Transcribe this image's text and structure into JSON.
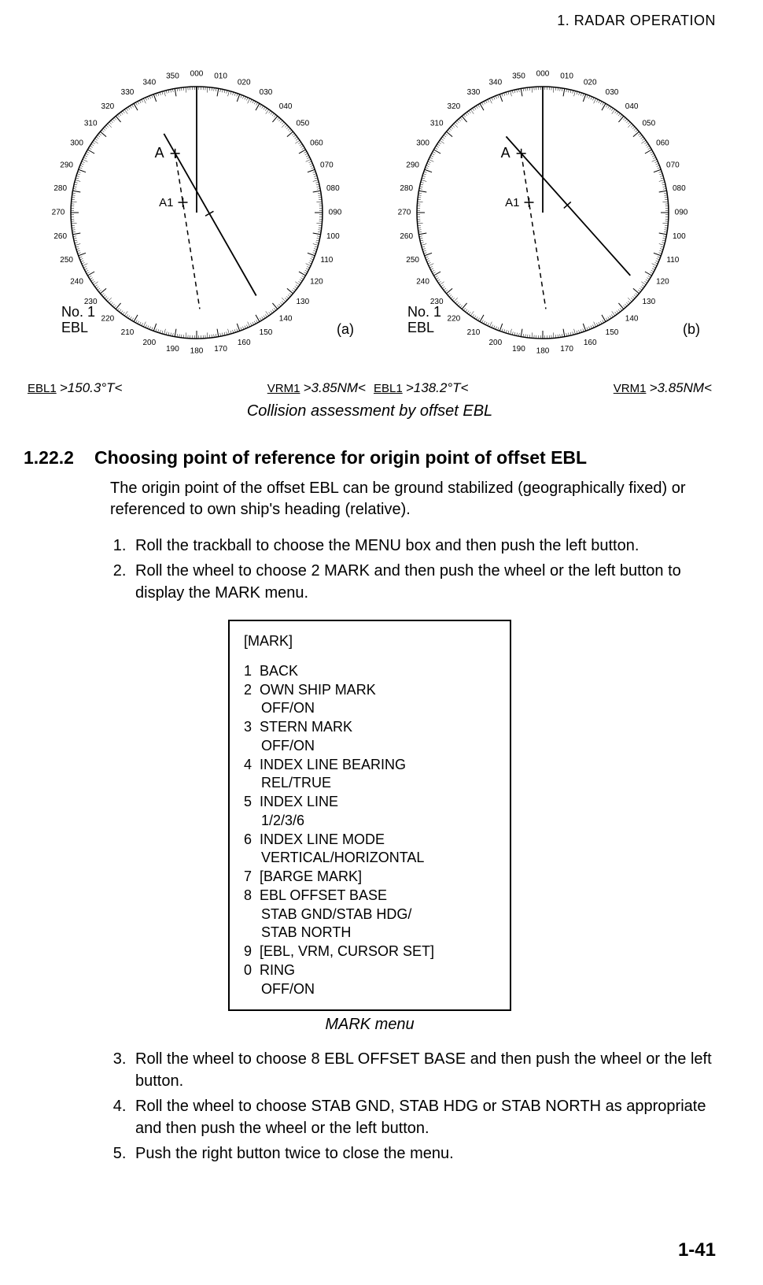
{
  "header": "1.  RADAR  OPERATION",
  "footer": "1-41",
  "figure": {
    "caption": "Collision assessment by offset EBL",
    "compass_labels": [
      "000",
      "010",
      "020",
      "030",
      "040",
      "050",
      "060",
      "070",
      "080",
      "090",
      "100",
      "110",
      "120",
      "130",
      "140",
      "150",
      "160",
      "170",
      "180",
      "190",
      "200",
      "210",
      "220",
      "230",
      "240",
      "250",
      "260",
      "270",
      "280",
      "290",
      "300",
      "310",
      "320",
      "330",
      "340",
      "350"
    ],
    "a": {
      "point_a_label": "A",
      "point_a1_label": "A1",
      "ebl_label_line1": "No. 1",
      "ebl_label_line2": "EBL",
      "panel_label": "(a)",
      "ebl1_label": "EBL1",
      "ebl1_value": ">150.3°T<",
      "vrm1_label": "VRM1",
      "vrm1_value": ">3.85NM<",
      "ebl_bearing_deg": 150.3,
      "own_ship_bearing_deg": 340,
      "target_a_bearing_deg": 340,
      "target_a_range_frac": 0.5,
      "dashed_line_bearing_deg": 171
    },
    "b": {
      "point_a_label": "A",
      "point_a1_label": "A1",
      "ebl_label_line1": "No. 1",
      "ebl_label_line2": "EBL",
      "panel_label": "(b)",
      "ebl1_label": "EBL1",
      "ebl1_value": ">138.2°T<",
      "vrm1_label": "VRM1",
      "vrm1_value": ">3.85NM<",
      "ebl_bearing_deg": 138.2,
      "own_ship_bearing_deg": 340,
      "target_a_bearing_deg": 340,
      "target_a_range_frac": 0.5,
      "dashed_line_bearing_deg": 171
    },
    "style": {
      "stroke": "#000000",
      "fill_bg": "#ffffff",
      "tick_font_size": 10,
      "label_font_size": 18,
      "small_label_font_size": 15
    }
  },
  "section": {
    "number": "1.22.2",
    "title": "Choosing point of reference for origin point of offset EBL",
    "intro": "The origin point of the offset EBL can be ground stabilized (geographically fixed) or referenced to own ship's heading (relative).",
    "steps_before": [
      "Roll the trackball to choose the MENU box and then push the left button.",
      "Roll the wheel to choose 2 MARK and then push the wheel or the left button to display the MARK menu."
    ],
    "steps_after": [
      "Roll the wheel to choose 8 EBL OFFSET BASE and then push the wheel or the left button.",
      "Roll the wheel to choose STAB GND, STAB HDG or STAB NORTH as appropriate and then push the wheel or the left button.",
      "Push the right button twice to close the menu."
    ]
  },
  "menu": {
    "title": "[MARK]",
    "items": [
      {
        "n": "1",
        "t": "BACK"
      },
      {
        "n": "2",
        "t": "OWN SHIP MARK",
        "s": "OFF/ON"
      },
      {
        "n": "3",
        "t": "STERN MARK",
        "s": "OFF/ON"
      },
      {
        "n": "4",
        "t": "INDEX LINE BEARING",
        "s": "REL/TRUE"
      },
      {
        "n": "5",
        "t": "INDEX LINE",
        "s": "1/2/3/6"
      },
      {
        "n": "6",
        "t": "INDEX LINE MODE",
        "s": "VERTICAL/HORIZONTAL"
      },
      {
        "n": "7",
        "t": "[BARGE MARK]"
      },
      {
        "n": "8",
        "t": "EBL OFFSET BASE",
        "s": "STAB GND/STAB HDG/\nSTAB NORTH"
      },
      {
        "n": "9",
        "t": "[EBL, VRM, CURSOR SET]"
      },
      {
        "n": "0",
        "t": "RING",
        "s": "OFF/ON"
      }
    ],
    "caption": "MARK menu"
  }
}
